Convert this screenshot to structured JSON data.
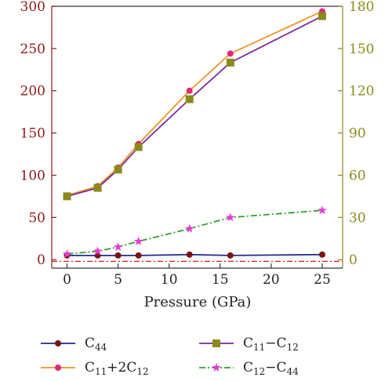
{
  "chart_data": {
    "type": "line",
    "xlabel": "Pressure (GPa)",
    "ylabel": "",
    "xlim": [
      -1.5,
      27
    ],
    "ylim_left": [
      -10,
      300
    ],
    "ylim_right": [
      -6,
      180
    ],
    "x_ticks": [
      0,
      5,
      10,
      15,
      20,
      25
    ],
    "y_ticks_left": [
      0,
      50,
      100,
      150,
      200,
      250,
      300
    ],
    "y_ticks_right": [
      0,
      30,
      60,
      90,
      120,
      150,
      180
    ],
    "grid": false,
    "legend_position": "bottom",
    "reference_line": {
      "y": -2,
      "color": "#d81b1b",
      "style": "dash-dot"
    },
    "series": [
      {
        "name": "C44",
        "name_base": "C",
        "name_sub": "44",
        "axis": "left",
        "color": "#1f2a8c",
        "marker": "circle",
        "marker_color": "#7a1414",
        "line": "solid",
        "x": [
          0,
          3,
          5,
          7,
          12,
          16,
          25
        ],
        "y": [
          5,
          5,
          5,
          5,
          6,
          5,
          6
        ]
      },
      {
        "name": "C11+2C12",
        "name_base": "C",
        "name_sub": "11",
        "name_mid": "+2C",
        "name_sub2": "12",
        "axis": "left",
        "color": "#f0922a",
        "marker": "circle",
        "marker_color": "#e0287a",
        "line": "solid",
        "x": [
          0,
          3,
          5,
          7,
          12,
          16,
          25
        ],
        "y": [
          76,
          87,
          109,
          137,
          200,
          244,
          294
        ]
      },
      {
        "name": "C11−C12",
        "name_base": "C",
        "name_sub": "11",
        "name_mid": "−C",
        "name_sub2": "12",
        "axis": "right",
        "color": "#7a2a9a",
        "marker": "square",
        "marker_color": "#8a8a1a",
        "line": "solid",
        "x": [
          0,
          3,
          5,
          7,
          12,
          16,
          25
        ],
        "y": [
          45,
          51,
          64,
          80,
          114,
          140,
          173
        ]
      },
      {
        "name": "C12−C44",
        "name_base": "C",
        "name_sub": "12",
        "name_mid": "−C",
        "name_sub2": "44",
        "axis": "right",
        "color": "#2ea02e",
        "marker": "star",
        "marker_color": "#e83ad8",
        "line": "dash-dot",
        "x": [
          0,
          3,
          5,
          7,
          12,
          16,
          25
        ],
        "y": [
          4,
          6,
          9,
          13,
          22,
          30,
          35
        ]
      }
    ]
  }
}
